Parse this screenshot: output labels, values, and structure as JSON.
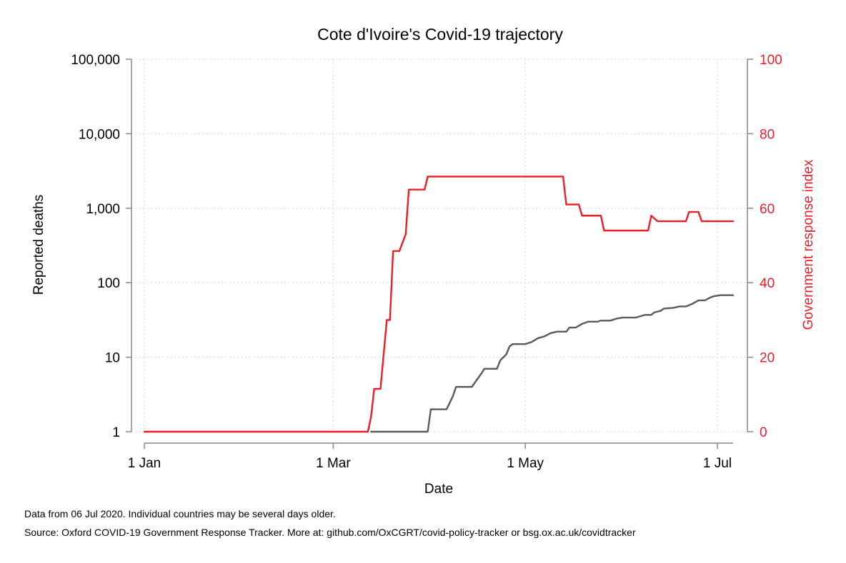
{
  "chart_data": {
    "type": "line",
    "title": "Cote d'Ivoire's Covid-19 trajectory",
    "xlabel": "Date",
    "ylabel": "Reported deaths",
    "y2label": "Government response index",
    "x_ticks": [
      "2020-01-01",
      "2020-03-01",
      "2020-05-01",
      "2020-07-01"
    ],
    "x_tick_labels": [
      "1 Jan",
      "1 Mar",
      "1 May",
      "1 Jul"
    ],
    "xlim": [
      "2020-01-01",
      "2020-07-01"
    ],
    "y_scale": "log",
    "ylim": [
      1,
      100000
    ],
    "y_ticks": [
      1,
      10,
      100,
      1000,
      10000,
      100000
    ],
    "y_tick_labels": [
      "1",
      "10",
      "100",
      "1,000",
      "10,000",
      "100,000"
    ],
    "y2lim": [
      0,
      100
    ],
    "y2_ticks": [
      0,
      20,
      40,
      60,
      80,
      100
    ],
    "y2_tick_labels": [
      "0",
      "20",
      "40",
      "60",
      "80",
      "100"
    ],
    "grid": true,
    "colors": {
      "deaths": "#5a5a5a",
      "response": "#ee1c25",
      "axis_left": "#888888",
      "axis_right": "#888888"
    },
    "series": [
      {
        "axis": "left",
        "points": [
          [
            "2020-03-13",
            1
          ],
          [
            "2020-03-31",
            1
          ],
          [
            "2020-04-01",
            2
          ],
          [
            "2020-04-06",
            2
          ],
          [
            "2020-04-08",
            3
          ],
          [
            "2020-04-09",
            4
          ],
          [
            "2020-04-14",
            4
          ],
          [
            "2020-04-17",
            6
          ],
          [
            "2020-04-18",
            7
          ],
          [
            "2020-04-22",
            7
          ],
          [
            "2020-04-23",
            9
          ],
          [
            "2020-04-25",
            11
          ],
          [
            "2020-04-26",
            14
          ],
          [
            "2020-04-27",
            15
          ],
          [
            "2020-05-01",
            15
          ],
          [
            "2020-05-03",
            16
          ],
          [
            "2020-05-05",
            18
          ],
          [
            "2020-05-07",
            19
          ],
          [
            "2020-05-09",
            21
          ],
          [
            "2020-05-11",
            22
          ],
          [
            "2020-05-14",
            22
          ],
          [
            "2020-05-15",
            25
          ],
          [
            "2020-05-17",
            25
          ],
          [
            "2020-05-19",
            28
          ],
          [
            "2020-05-21",
            30
          ],
          [
            "2020-05-24",
            30
          ],
          [
            "2020-05-25",
            31
          ],
          [
            "2020-05-28",
            31
          ],
          [
            "2020-05-30",
            33
          ],
          [
            "2020-06-01",
            34
          ],
          [
            "2020-06-05",
            34
          ],
          [
            "2020-06-08",
            37
          ],
          [
            "2020-06-10",
            37
          ],
          [
            "2020-06-11",
            40
          ],
          [
            "2020-06-13",
            42
          ],
          [
            "2020-06-14",
            45
          ],
          [
            "2020-06-17",
            46
          ],
          [
            "2020-06-19",
            48
          ],
          [
            "2020-06-21",
            48
          ],
          [
            "2020-06-23",
            52
          ],
          [
            "2020-06-25",
            58
          ],
          [
            "2020-06-27",
            58
          ],
          [
            "2020-06-29",
            64
          ],
          [
            "2020-06-30",
            66
          ],
          [
            "2020-07-02",
            68
          ],
          [
            "2020-07-06",
            68
          ]
        ]
      },
      {
        "axis": "right",
        "points": [
          [
            "2020-01-01",
            0
          ],
          [
            "2020-03-12",
            0
          ],
          [
            "2020-03-13",
            4
          ],
          [
            "2020-03-14",
            11.5
          ],
          [
            "2020-03-16",
            11.5
          ],
          [
            "2020-03-18",
            30
          ],
          [
            "2020-03-19",
            30
          ],
          [
            "2020-03-20",
            48.5
          ],
          [
            "2020-03-22",
            48.5
          ],
          [
            "2020-03-24",
            53
          ],
          [
            "2020-03-25",
            65
          ],
          [
            "2020-03-30",
            65
          ],
          [
            "2020-03-31",
            68.5
          ],
          [
            "2020-05-13",
            68.5
          ],
          [
            "2020-05-14",
            61
          ],
          [
            "2020-05-18",
            61
          ],
          [
            "2020-05-19",
            58
          ],
          [
            "2020-05-25",
            58
          ],
          [
            "2020-05-26",
            54
          ],
          [
            "2020-06-09",
            54
          ],
          [
            "2020-06-10",
            58
          ],
          [
            "2020-06-12",
            56.5
          ],
          [
            "2020-06-21",
            56.5
          ],
          [
            "2020-06-22",
            59
          ],
          [
            "2020-06-25",
            59
          ],
          [
            "2020-06-26",
            56.5
          ],
          [
            "2020-07-06",
            56.5
          ]
        ]
      }
    ]
  },
  "notes": {
    "line1": "Data from 06 Jul 2020. Individual countries may be several days older.",
    "line2": "Source: Oxford COVID-19 Government Response Tracker. More at: github.com/OxCGRT/covid-policy-tracker or bsg.ox.ac.uk/covidtracker"
  }
}
